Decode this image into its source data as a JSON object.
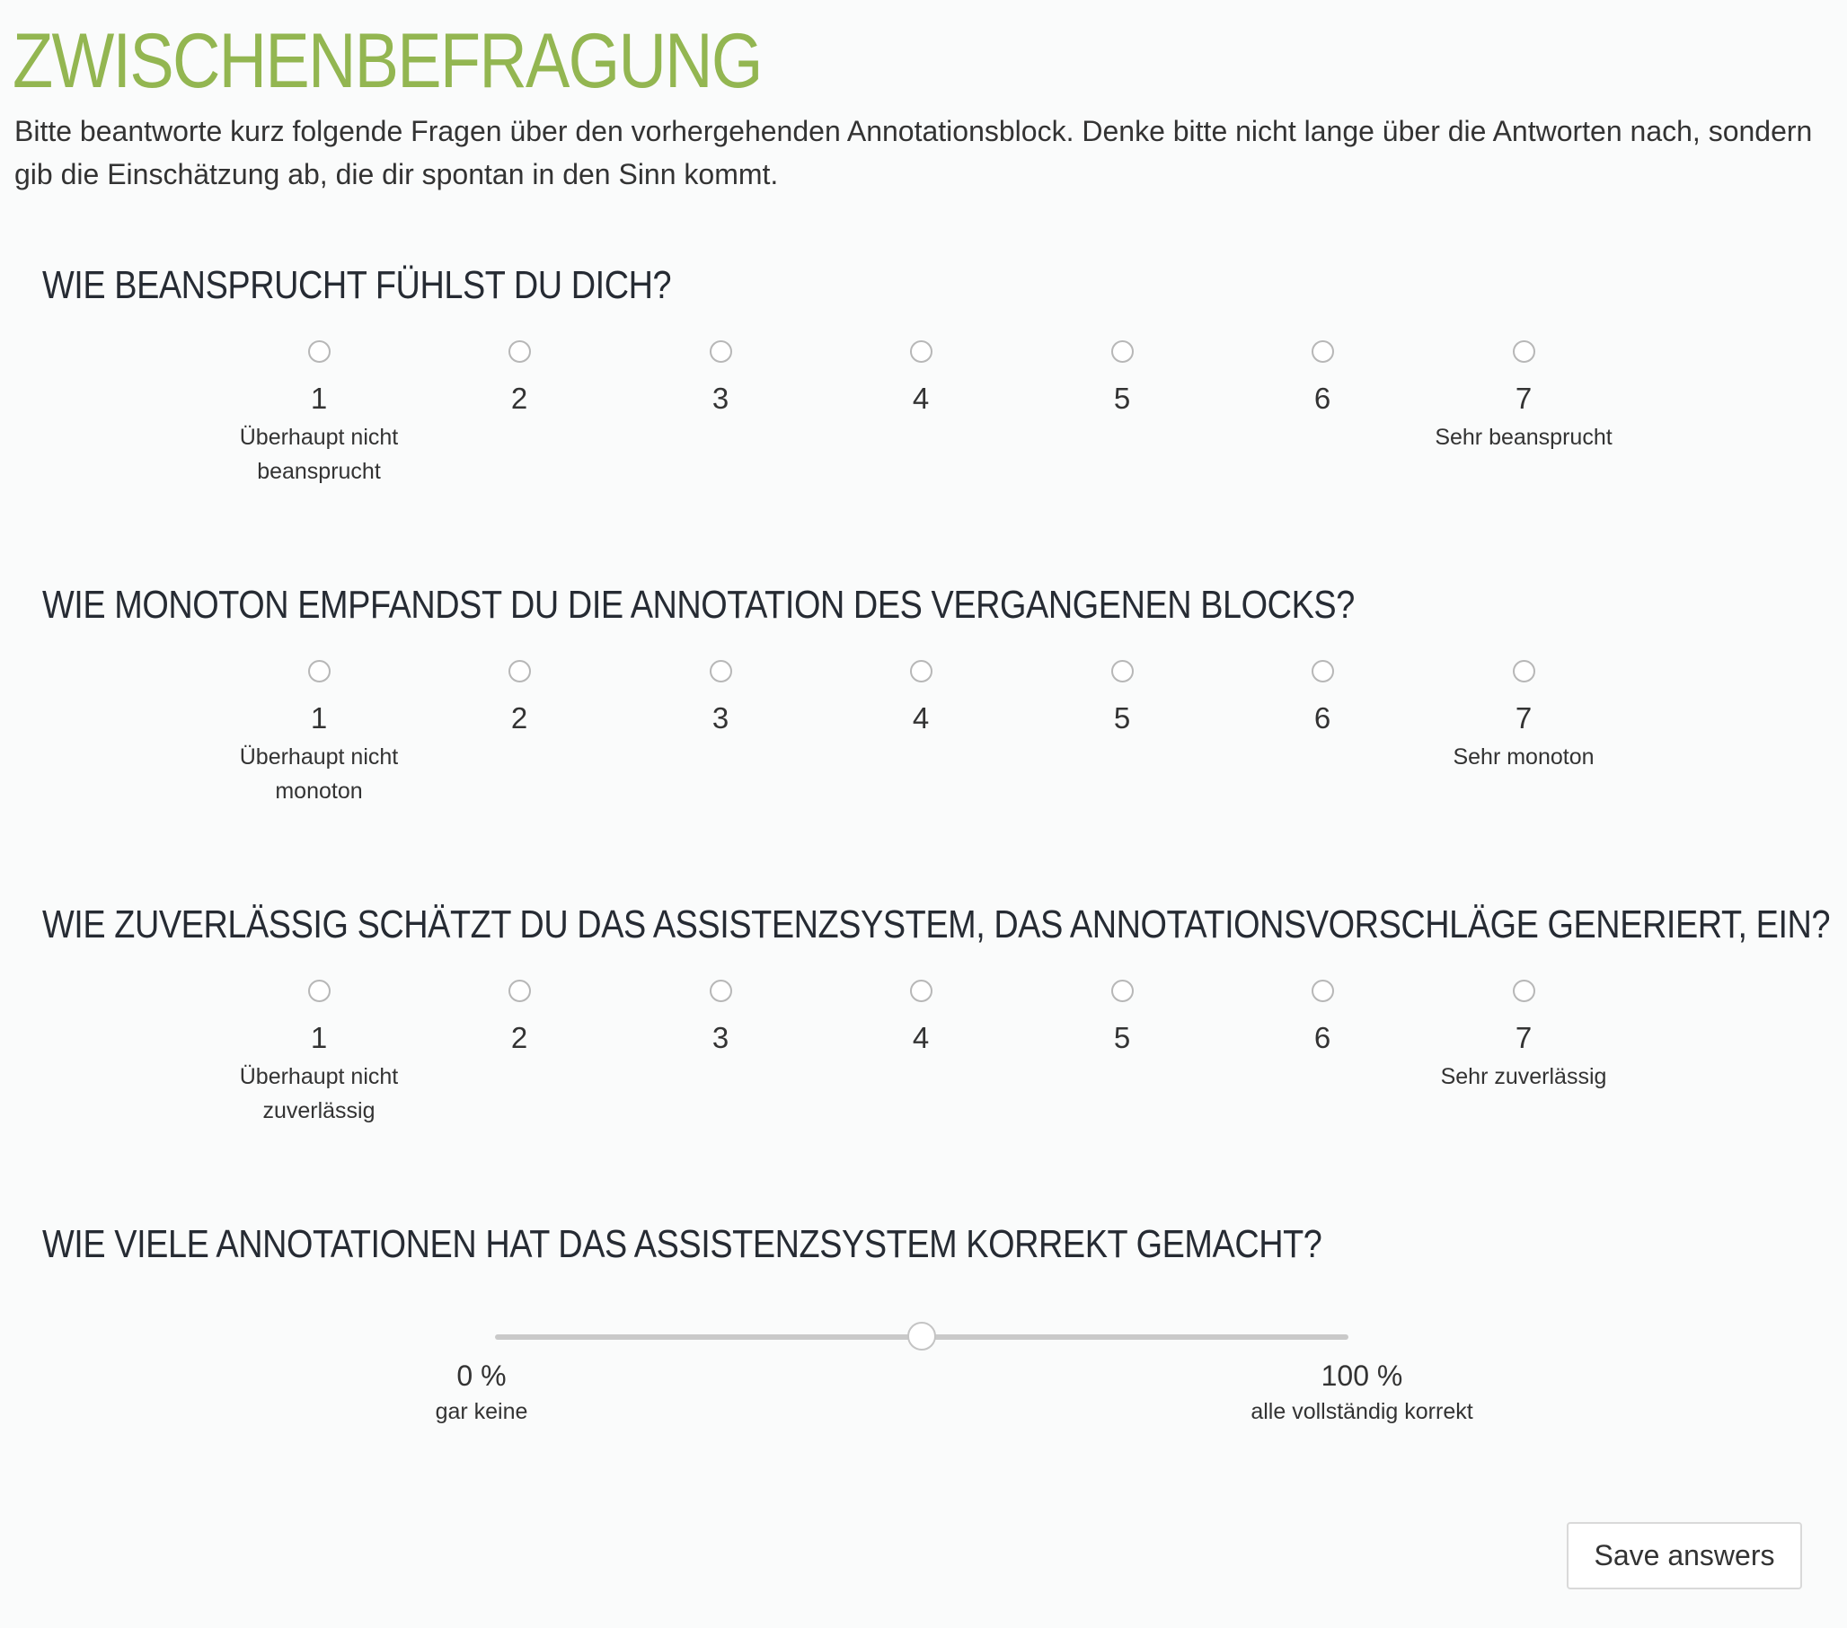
{
  "header": {
    "title": "ZWISCHENBEFRAGUNG",
    "intro": "Bitte beantworte kurz folgende Fragen über den vorhergehenden Annotationsblock. Denke bitte nicht lange über die Antworten nach, sondern gib die Einschätzung ab, die dir spontan in den Sinn kommt."
  },
  "questions": [
    {
      "title": "WIE BEANSPRUCHT FÜHLST DU DICH?",
      "options": [
        "1",
        "2",
        "3",
        "4",
        "5",
        "6",
        "7"
      ],
      "min_label": "Überhaupt nicht beansprucht",
      "max_label": "Sehr beansprucht",
      "selected": null
    },
    {
      "title": "WIE MONOTON EMPFANDST DU DIE ANNOTATION DES VERGANGENEN BLOCKS?",
      "options": [
        "1",
        "2",
        "3",
        "4",
        "5",
        "6",
        "7"
      ],
      "min_label": "Überhaupt nicht monoton",
      "max_label": "Sehr monoton",
      "selected": null
    },
    {
      "title": "WIE ZUVERLÄSSIG SCHÄTZT DU DAS ASSISTENZSYSTEM, DAS ANNOTATIONSVORSCHLÄGE GENERIERT, EIN?",
      "options": [
        "1",
        "2",
        "3",
        "4",
        "5",
        "6",
        "7"
      ],
      "min_label": "Überhaupt nicht zuverlässig",
      "max_label": "Sehr zuverlässig",
      "selected": null
    },
    {
      "title": "WIE VIELE ANNOTATIONEN HAT DAS ASSISTENZSYSTEM KORREKT GEMACHT?",
      "slider": {
        "min_value": "0 %",
        "min_caption": "gar keine",
        "max_value": "100 %",
        "max_caption": "alle vollständig korrekt",
        "level": 0.5
      }
    }
  ],
  "actions": {
    "save_label": "Save answers"
  },
  "colors": {
    "title": "#93b651",
    "text": "#333333",
    "heading": "#262b33",
    "background": "#fafbfb"
  }
}
